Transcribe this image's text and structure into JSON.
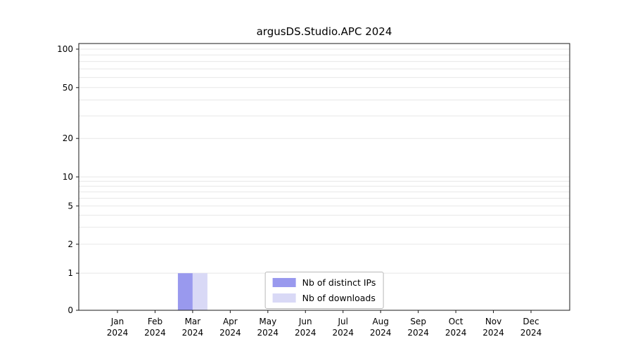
{
  "title": "argusDS.Studio.APC 2024",
  "chart_data": {
    "type": "bar",
    "title": "argusDS.Studio.APC 2024",
    "categories": [
      "Jan",
      "Feb",
      "Mar",
      "Apr",
      "May",
      "Jun",
      "Jul",
      "Aug",
      "Sep",
      "Oct",
      "Nov",
      "Dec"
    ],
    "year": "2024",
    "series": [
      {
        "name": "Nb of distinct IPs",
        "color": "#9999ee",
        "values": [
          0,
          0,
          1,
          0,
          0,
          0,
          0,
          0,
          0,
          0,
          0,
          0
        ]
      },
      {
        "name": "Nb of downloads",
        "color": "#d9d9f6",
        "values": [
          0,
          0,
          1,
          0,
          0,
          0,
          0,
          0,
          0,
          0,
          0,
          0
        ]
      }
    ],
    "xlabel": "",
    "ylabel": "",
    "yaxis": {
      "scale": "log-like with linear segment below 1",
      "ticks": [
        100,
        50,
        20,
        10,
        5,
        2,
        1,
        0
      ],
      "gridline_values": [
        1,
        2,
        3,
        4,
        5,
        6,
        7,
        8,
        9,
        10,
        20,
        30,
        40,
        50,
        60,
        70,
        80,
        90,
        100
      ],
      "ylim": [
        0,
        100
      ]
    },
    "grid": true,
    "legend": {
      "position": "lower center inside plot",
      "labels": [
        "Nb of distinct IPs",
        "Nb of downloads"
      ]
    }
  },
  "colors": {
    "background": "#ffffff",
    "grid": "#e7e7e7",
    "spine": "#1a1a1a",
    "text": "#000000",
    "legend_border": "#b8b8b8",
    "bar_distinct_ips": "#9999ee",
    "bar_downloads": "#d9d9f6"
  }
}
